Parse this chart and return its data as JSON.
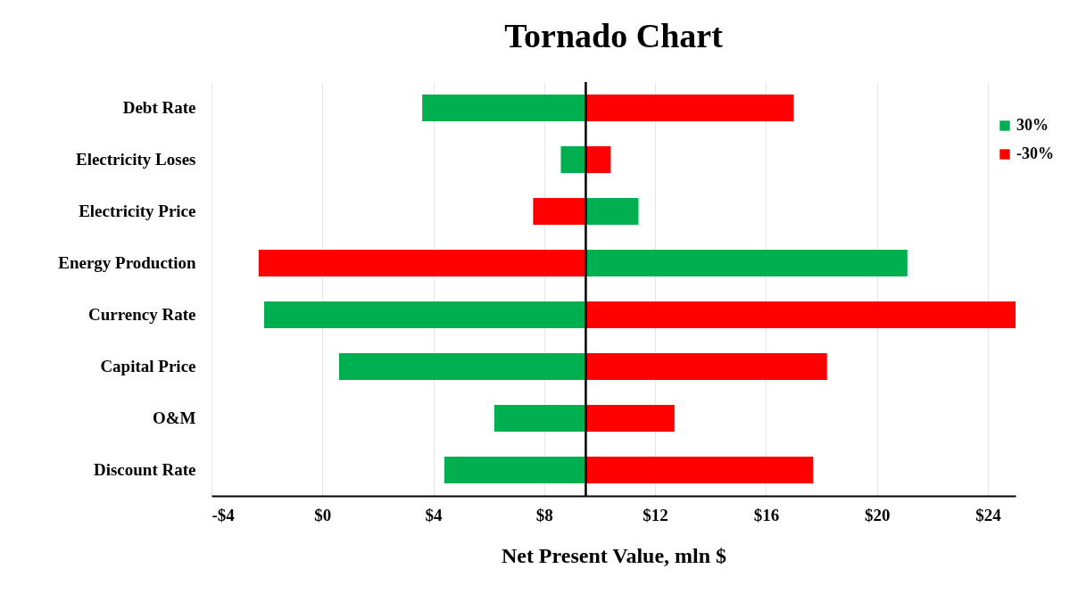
{
  "chart_data": {
    "type": "bar",
    "title": "Tornado Chart",
    "xlabel": "Net Present Value, mln $",
    "orientation": "horizontal",
    "categories": [
      "Debt Rate",
      "Electricity Loses",
      "Electricity Price",
      "Energy Production",
      "Currency Rate",
      "Capital Price",
      "O&M",
      "Discount Rate"
    ],
    "series": [
      {
        "name": "30%",
        "color": "#00b050",
        "base": [
          9.5,
          9.5,
          9.5,
          9.5,
          9.5,
          9.5,
          9.5,
          9.5
        ],
        "values": [
          -5.9,
          -0.9,
          1.9,
          11.6,
          -11.6,
          -8.9,
          -3.3,
          -5.1
        ]
      },
      {
        "name": "-30%",
        "color": "#ff0000",
        "base": [
          9.5,
          9.5,
          9.5,
          9.5,
          9.5,
          9.5,
          9.5,
          9.5
        ],
        "values": [
          7.5,
          0.9,
          -1.9,
          -11.8,
          15.5,
          8.7,
          3.2,
          8.2
        ]
      }
    ],
    "xlim": [
      -4,
      25
    ],
    "xticks": [
      {
        "value": -4,
        "label": "-$4"
      },
      {
        "value": 0,
        "label": "$0"
      },
      {
        "value": 4,
        "label": "$4"
      },
      {
        "value": 8,
        "label": "$8"
      },
      {
        "value": 12,
        "label": "$12"
      },
      {
        "value": 16,
        "label": "$16"
      },
      {
        "value": 20,
        "label": "$20"
      },
      {
        "value": 24,
        "label": "$24"
      }
    ],
    "ref_lines": [
      {
        "axis": "x",
        "value": 9.5
      }
    ],
    "grid": "x",
    "legend": "top right"
  }
}
